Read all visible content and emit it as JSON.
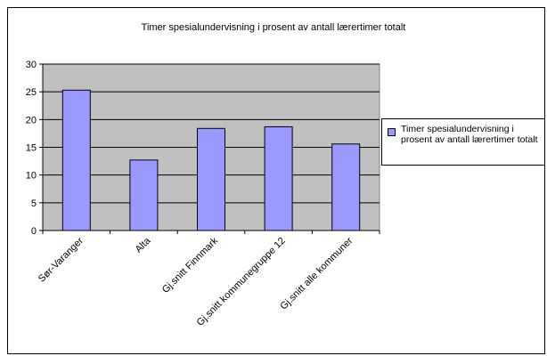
{
  "chart_data": {
    "type": "bar",
    "title": "Timer spesialundervisning i prosent av antall lærertimer totalt",
    "categories": [
      "Sør-Varanger",
      "Alta",
      "Gj.snitt Finnmark",
      "Gj.snitt kommunegruppe 12",
      "Gj.snitt alle kommuner"
    ],
    "series": [
      {
        "name": "Timer spesialundervisning i prosent av antall lærertimer totalt",
        "values": [
          25.3,
          12.7,
          18.4,
          18.7,
          15.6
        ]
      }
    ],
    "ylim": [
      0,
      30
    ],
    "yticks": [
      "0",
      "5",
      "10",
      "15",
      "20",
      "25",
      "30"
    ],
    "xlabel": "",
    "ylabel": "",
    "grid": true,
    "legend_position": "right",
    "colors": {
      "bar": "#9999ff",
      "plot_background": "#c0c0c0",
      "frame": "#000000",
      "gridline": "#000000"
    }
  }
}
